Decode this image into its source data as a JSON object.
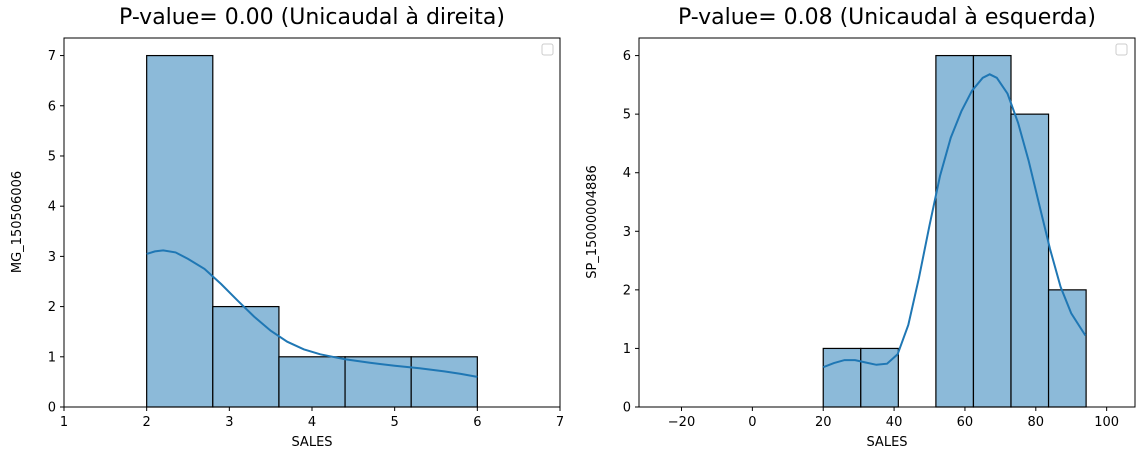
{
  "chart_data": [
    {
      "type": "bar",
      "title": "P-value= 0.00 (Unicaudal à direita)",
      "xlabel": "SALES",
      "ylabel": "MG_150506006",
      "xlim": [
        1,
        7
      ],
      "ylim": [
        0,
        7.35
      ],
      "xticks": [
        1,
        2,
        3,
        4,
        5,
        6,
        7
      ],
      "yticks": [
        0,
        1,
        2,
        3,
        4,
        5,
        6,
        7
      ],
      "bins": [
        {
          "x0": 2.0,
          "x1": 2.8,
          "count": 7
        },
        {
          "x0": 2.8,
          "x1": 3.6,
          "count": 2
        },
        {
          "x0": 3.6,
          "x1": 4.4,
          "count": 1
        },
        {
          "x0": 4.4,
          "x1": 5.2,
          "count": 1
        },
        {
          "x0": 5.2,
          "x1": 6.0,
          "count": 1
        }
      ],
      "kde": [
        [
          2.0,
          3.05
        ],
        [
          2.1,
          3.1
        ],
        [
          2.2,
          3.12
        ],
        [
          2.35,
          3.08
        ],
        [
          2.5,
          2.95
        ],
        [
          2.7,
          2.75
        ],
        [
          2.9,
          2.45
        ],
        [
          3.1,
          2.12
        ],
        [
          3.3,
          1.8
        ],
        [
          3.5,
          1.52
        ],
        [
          3.7,
          1.3
        ],
        [
          3.9,
          1.15
        ],
        [
          4.1,
          1.05
        ],
        [
          4.4,
          0.95
        ],
        [
          4.7,
          0.88
        ],
        [
          5.0,
          0.82
        ],
        [
          5.3,
          0.77
        ],
        [
          5.6,
          0.71
        ],
        [
          5.8,
          0.66
        ],
        [
          6.0,
          0.6
        ]
      ],
      "legend": "top-right",
      "bar_color": "#8cbad9",
      "line_color": "#1f77b4"
    },
    {
      "type": "bar",
      "title": "P-value= 0.08 (Unicaudal à esquerda)",
      "xlabel": "SALES",
      "ylabel": "SP_15000004886",
      "xlim": [
        -32,
        108
      ],
      "ylim": [
        0,
        6.3
      ],
      "xticks": [
        -20,
        0,
        20,
        40,
        60,
        80,
        100
      ],
      "yticks": [
        0,
        1,
        2,
        3,
        4,
        5,
        6
      ],
      "bins": [
        {
          "x0": 20.0,
          "x1": 30.6,
          "count": 1
        },
        {
          "x0": 30.6,
          "x1": 41.2,
          "count": 1
        },
        {
          "x0": 41.2,
          "x1": 51.8,
          "count": 0
        },
        {
          "x0": 51.8,
          "x1": 62.4,
          "count": 6
        },
        {
          "x0": 62.4,
          "x1": 73.0,
          "count": 6
        },
        {
          "x0": 73.0,
          "x1": 83.6,
          "count": 5
        },
        {
          "x0": 83.6,
          "x1": 94.2,
          "count": 2
        }
      ],
      "kde": [
        [
          20,
          0.68
        ],
        [
          23,
          0.75
        ],
        [
          26,
          0.8
        ],
        [
          29,
          0.8
        ],
        [
          32,
          0.76
        ],
        [
          35,
          0.72
        ],
        [
          38,
          0.74
        ],
        [
          41,
          0.9
        ],
        [
          44,
          1.4
        ],
        [
          47,
          2.2
        ],
        [
          50,
          3.1
        ],
        [
          53,
          3.95
        ],
        [
          56,
          4.6
        ],
        [
          59,
          5.05
        ],
        [
          62,
          5.4
        ],
        [
          65,
          5.62
        ],
        [
          67,
          5.68
        ],
        [
          69,
          5.62
        ],
        [
          72,
          5.35
        ],
        [
          75,
          4.85
        ],
        [
          78,
          4.2
        ],
        [
          81,
          3.45
        ],
        [
          84,
          2.7
        ],
        [
          87,
          2.05
        ],
        [
          90,
          1.6
        ],
        [
          94,
          1.22
        ]
      ],
      "legend": "top-right",
      "bar_color": "#8cbad9",
      "line_color": "#1f77b4"
    }
  ]
}
